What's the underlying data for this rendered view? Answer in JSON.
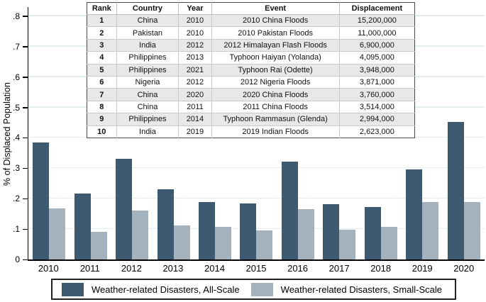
{
  "chart_data": {
    "type": "bar",
    "title": "",
    "xlabel": "",
    "ylabel": "% of Displaced Population",
    "categories": [
      "2010",
      "2011",
      "2012",
      "2013",
      "2014",
      "2015",
      "2016",
      "2017",
      "2018",
      "2019",
      "2020"
    ],
    "series": [
      {
        "name": "Weather-related Disasters, All-Scale",
        "color": "#3d5a70",
        "values": [
          0.385,
          0.216,
          0.33,
          0.23,
          0.19,
          0.184,
          0.322,
          0.183,
          0.173,
          0.296,
          0.453
        ]
      },
      {
        "name": "Weather-related Disasters, Small-Scale",
        "color": "#a3b2bc",
        "values": [
          0.168,
          0.092,
          0.16,
          0.112,
          0.107,
          0.096,
          0.166,
          0.097,
          0.107,
          0.188,
          0.19
        ]
      }
    ],
    "ylim": [
      0,
      0.83
    ],
    "yticks": [
      0,
      0.1,
      0.2,
      0.3,
      0.4,
      0.5,
      0.6,
      0.7,
      0.8
    ],
    "ytick_labels": [
      "0",
      ".1",
      ".2",
      ".3",
      ".4",
      ".5",
      ".6",
      ".7",
      ".8"
    ],
    "grid": "horizontal",
    "legend_position": "bottom"
  },
  "table": {
    "headers": [
      "Rank",
      "Country",
      "Year",
      "Event",
      "Displacement"
    ],
    "rows": [
      [
        "1",
        "China",
        "2010",
        "2010 China Floods",
        "15,200,000"
      ],
      [
        "2",
        "Pakistan",
        "2010",
        "2010 Pakistan Floods",
        "11,000,000"
      ],
      [
        "3",
        "India",
        "2012",
        "2012 Himalayan Flash Floods",
        "6,900,000"
      ],
      [
        "4",
        "Philippines",
        "2013",
        "Typhoon Haiyan (Yolanda)",
        "4,095,000"
      ],
      [
        "5",
        "Philippines",
        "2021",
        "Typhoon Rai (Odette)",
        "3,948,000"
      ],
      [
        "6",
        "Nigeria",
        "2012",
        "2012 Nigeria Floods",
        "3,871,000"
      ],
      [
        "7",
        "China",
        "2020",
        "2020 China Floods",
        "3,760,000"
      ],
      [
        "8",
        "China",
        "2011",
        "2011 China Floods",
        "3,514,000"
      ],
      [
        "9",
        "Philippines",
        "2014",
        "Typhoon Rammasun (Glenda)",
        "2,994,000"
      ],
      [
        "10",
        "India",
        "2019",
        "2019 Indian Floods",
        "2,623,000"
      ]
    ]
  },
  "legend": {
    "items": [
      {
        "label": "Weather-related Disasters, All-Scale",
        "color": "#3d5a70"
      },
      {
        "label": "Weather-related Disasters, Small-Scale",
        "color": "#a3b2bc"
      }
    ]
  },
  "colors": {
    "all_scale_bar": "#3d5a70",
    "small_scale_bar": "#a3b2bc",
    "gridline": "#e4eef0",
    "axis": "#000000",
    "table_shaded_row": "#e8e8e8"
  }
}
